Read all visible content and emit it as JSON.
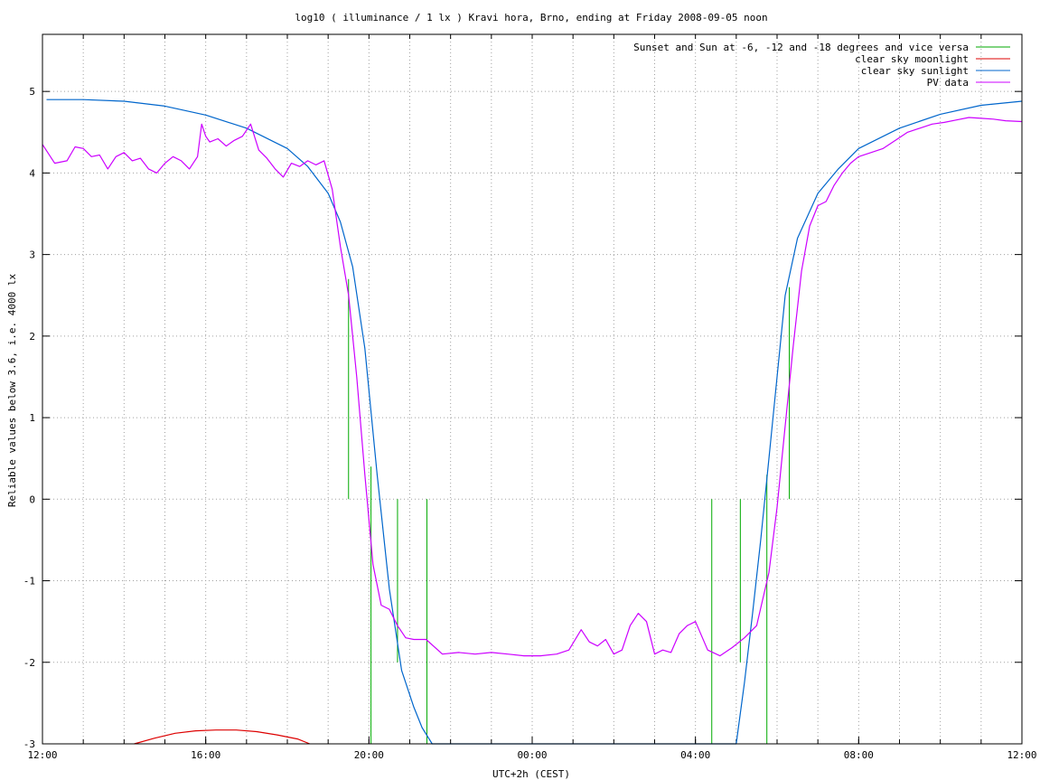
{
  "chart_data": {
    "type": "line",
    "title": "log10 ( illuminance / 1 lx ) Kravi hora, Brno, ending at Friday 2008-09-05 noon",
    "xlabel": "UTC+2h (CEST)",
    "ylabel": "Reliable values below 3.6, i.e. 4000 lx",
    "xlim": [
      0,
      24
    ],
    "ylim": [
      -3,
      5.7
    ],
    "x_ticks": [
      {
        "value": 0,
        "label": "12:00"
      },
      {
        "value": 4,
        "label": "16:00"
      },
      {
        "value": 8,
        "label": "20:00"
      },
      {
        "value": 12,
        "label": "00:00"
      },
      {
        "value": 16,
        "label": "04:00"
      },
      {
        "value": 20,
        "label": "08:00"
      },
      {
        "value": 24,
        "label": "12:00"
      }
    ],
    "x_grid_step_hours": 1,
    "y_ticks": [
      -3,
      -2,
      -1,
      0,
      1,
      2,
      3,
      4,
      5
    ],
    "grid": true,
    "legend_position": "top-right",
    "series": [
      {
        "name": "Sunset and Sun at -6, -12 and -18 degrees and vice versa",
        "color": "#00aa00",
        "style": "vertical-markers",
        "markers": [
          {
            "x": 7.5,
            "y_top": 2.7,
            "y_bottom": 0
          },
          {
            "x": 8.05,
            "y_top": 0.4,
            "y_bottom": -3
          },
          {
            "x": 8.7,
            "y_top": 0,
            "y_bottom": -2.0
          },
          {
            "x": 9.42,
            "y_top": 0,
            "y_bottom": -3
          },
          {
            "x": 16.4,
            "y_top": 0,
            "y_bottom": -3
          },
          {
            "x": 17.1,
            "y_top": 0,
            "y_bottom": -2.0
          },
          {
            "x": 17.75,
            "y_top": 0.3,
            "y_bottom": -3
          },
          {
            "x": 18.3,
            "y_top": 2.6,
            "y_bottom": 0
          }
        ]
      },
      {
        "name": "clear sky moonlight",
        "color": "#dd0000",
        "x": [
          2.25,
          2.75,
          3.25,
          3.75,
          4.25,
          4.75,
          5.25,
          5.75,
          6.25,
          6.55
        ],
        "y": [
          -3.0,
          -2.93,
          -2.87,
          -2.84,
          -2.83,
          -2.83,
          -2.85,
          -2.89,
          -2.94,
          -3.0
        ]
      },
      {
        "name": "clear sky sunlight",
        "color": "#0066cc",
        "x": [
          0.1,
          1,
          2,
          3,
          4,
          5,
          6,
          6.5,
          7,
          7.3,
          7.6,
          7.9,
          8.2,
          8.5,
          8.8,
          9.1,
          9.3,
          9.55,
          17.0,
          17.2,
          17.4,
          17.6,
          17.8,
          18.0,
          18.2,
          18.5,
          19.0,
          19.5,
          20,
          21,
          22,
          23,
          24
        ],
        "y": [
          4.9,
          4.9,
          4.88,
          4.82,
          4.71,
          4.55,
          4.3,
          4.08,
          3.75,
          3.4,
          2.85,
          1.85,
          0.3,
          -1.1,
          -2.1,
          -2.55,
          -2.8,
          -3.0,
          -3.0,
          -2.25,
          -1.4,
          -0.5,
          0.5,
          1.5,
          2.5,
          3.2,
          3.75,
          4.05,
          4.3,
          4.55,
          4.72,
          4.83,
          4.88
        ]
      },
      {
        "name": "PV data",
        "color": "#cc00ff",
        "x": [
          0,
          0.3,
          0.6,
          0.8,
          1.0,
          1.2,
          1.4,
          1.6,
          1.8,
          2.0,
          2.2,
          2.4,
          2.6,
          2.8,
          3.0,
          3.2,
          3.4,
          3.6,
          3.8,
          3.9,
          4.0,
          4.1,
          4.3,
          4.5,
          4.7,
          4.9,
          5.1,
          5.3,
          5.5,
          5.7,
          5.9,
          6.1,
          6.3,
          6.5,
          6.7,
          6.9,
          7.1,
          7.3,
          7.5,
          7.7,
          7.9,
          8.1,
          8.3,
          8.5,
          8.7,
          8.9,
          9.1,
          9.4,
          9.8,
          10.2,
          10.6,
          11.0,
          11.4,
          11.8,
          12.2,
          12.6,
          12.9,
          13.2,
          13.4,
          13.6,
          13.8,
          14.0,
          14.2,
          14.4,
          14.6,
          14.8,
          15.0,
          15.2,
          15.4,
          15.6,
          15.8,
          16.0,
          16.3,
          16.6,
          16.9,
          17.2,
          17.5,
          17.8,
          18.0,
          18.2,
          18.4,
          18.6,
          18.8,
          19.0,
          19.2,
          19.4,
          19.6,
          19.8,
          20.0,
          20.3,
          20.6,
          20.9,
          21.2,
          21.5,
          21.8,
          22.1,
          22.4,
          22.7,
          23.0,
          23.3,
          23.6,
          24.0
        ],
        "y": [
          4.35,
          4.12,
          4.15,
          4.32,
          4.3,
          4.2,
          4.22,
          4.05,
          4.2,
          4.25,
          4.15,
          4.18,
          4.05,
          4.0,
          4.12,
          4.2,
          4.15,
          4.05,
          4.2,
          4.6,
          4.45,
          4.38,
          4.42,
          4.33,
          4.4,
          4.45,
          4.6,
          4.28,
          4.18,
          4.05,
          3.95,
          4.12,
          4.08,
          4.15,
          4.1,
          4.15,
          3.8,
          3.1,
          2.5,
          1.5,
          0.3,
          -0.8,
          -1.3,
          -1.35,
          -1.55,
          -1.7,
          -1.72,
          -1.72,
          -1.9,
          -1.88,
          -1.9,
          -1.88,
          -1.9,
          -1.92,
          -1.92,
          -1.9,
          -1.85,
          -1.6,
          -1.75,
          -1.8,
          -1.72,
          -1.9,
          -1.85,
          -1.55,
          -1.4,
          -1.5,
          -1.9,
          -1.85,
          -1.88,
          -1.65,
          -1.55,
          -1.5,
          -1.85,
          -1.92,
          -1.82,
          -1.7,
          -1.55,
          -0.9,
          -0.1,
          0.9,
          1.9,
          2.8,
          3.35,
          3.6,
          3.65,
          3.85,
          4.0,
          4.12,
          4.2,
          4.25,
          4.3,
          4.4,
          4.5,
          4.55,
          4.6,
          4.62,
          4.65,
          4.68,
          4.67,
          4.66,
          4.64,
          4.63
        ]
      }
    ]
  }
}
